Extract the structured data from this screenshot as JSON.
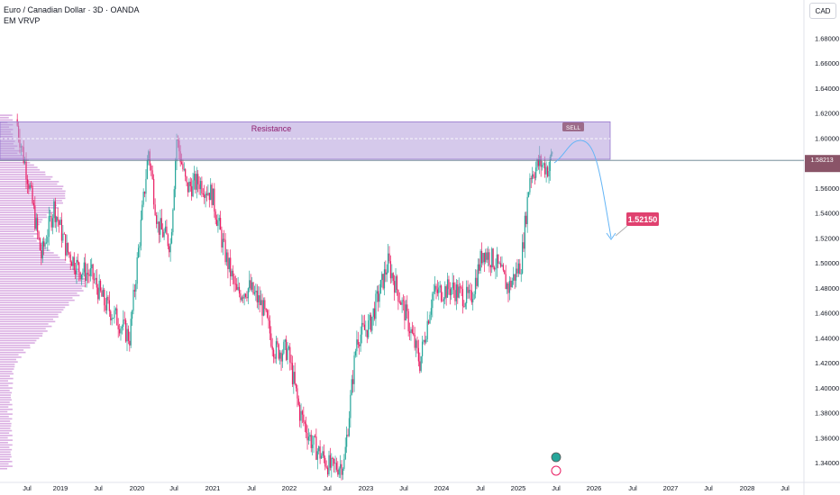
{
  "header": {
    "symbol_title": "Euro / Canadian Dollar · 3D · OANDA",
    "indicator": "EM VRVP",
    "currency_badge": "CAD"
  },
  "colors": {
    "up": "#26a69a",
    "down": "#e91e63",
    "resistance_zone": "#b39ddb",
    "volume_profile": "#ce93d8",
    "price_line": "#607d8b",
    "projection": "#64b5f6",
    "label_bg": "#e0416f"
  },
  "chart_data": {
    "type": "candlestick",
    "title": "",
    "xlabel": "",
    "ylabel": "CAD",
    "x_ticks": [
      "Jul",
      "2019",
      "Jul",
      "2020",
      "Jul",
      "2021",
      "Jul",
      "2022",
      "Jul",
      "2023",
      "Jul",
      "2024",
      "Jul",
      "2025",
      "Jul",
      "2026",
      "Jul",
      "2027",
      "Jul",
      "2028",
      "Jul"
    ],
    "y_ticks": [
      "1.34000",
      "1.36000",
      "1.38000",
      "1.40000",
      "1.42000",
      "1.44000",
      "1.46000",
      "1.48000",
      "1.50000",
      "1.52000",
      "1.54000",
      "1.56000",
      "1.58000",
      "1.60000",
      "1.62000",
      "1.64000",
      "1.66000",
      "1.68000"
    ],
    "ylim": [
      1.33,
      1.705
    ],
    "price_path": [
      [
        "2018-06-01",
        1.615
      ],
      [
        "2018-08-01",
        1.565
      ],
      [
        "2018-10-01",
        1.505
      ],
      [
        "2018-12-01",
        1.545
      ],
      [
        "2019-02-01",
        1.51
      ],
      [
        "2019-04-01",
        1.495
      ],
      [
        "2019-06-01",
        1.49
      ],
      [
        "2019-08-01",
        1.468
      ],
      [
        "2019-10-01",
        1.455
      ],
      [
        "2019-12-01",
        1.44
      ],
      [
        "2020-03-01",
        1.59
      ],
      [
        "2020-04-15",
        1.53
      ],
      [
        "2020-06-15",
        1.515
      ],
      [
        "2020-07-15",
        1.6
      ],
      [
        "2020-09-01",
        1.56
      ],
      [
        "2020-11-01",
        1.565
      ],
      [
        "2021-01-01",
        1.555
      ],
      [
        "2021-03-01",
        1.51
      ],
      [
        "2021-05-01",
        1.475
      ],
      [
        "2021-07-01",
        1.48
      ],
      [
        "2021-09-01",
        1.465
      ],
      [
        "2021-11-01",
        1.43
      ],
      [
        "2022-01-01",
        1.43
      ],
      [
        "2022-03-01",
        1.38
      ],
      [
        "2022-05-01",
        1.355
      ],
      [
        "2022-08-01",
        1.335
      ],
      [
        "2022-10-01",
        1.34
      ],
      [
        "2022-12-01",
        1.44
      ],
      [
        "2023-02-01",
        1.45
      ],
      [
        "2023-05-01",
        1.5
      ],
      [
        "2023-08-01",
        1.455
      ],
      [
        "2023-10-01",
        1.42
      ],
      [
        "2023-12-01",
        1.475
      ],
      [
        "2024-03-01",
        1.48
      ],
      [
        "2024-06-01",
        1.47
      ],
      [
        "2024-08-01",
        1.51
      ],
      [
        "2024-10-01",
        1.5
      ],
      [
        "2024-12-01",
        1.48
      ],
      [
        "2025-02-01",
        1.5
      ],
      [
        "2025-03-15",
        1.57
      ],
      [
        "2025-05-01",
        1.58
      ],
      [
        "2025-06-15",
        1.575
      ],
      [
        "2025-07-01",
        1.59
      ]
    ],
    "resistance_zone": {
      "label": "Resistance",
      "from": 1.583,
      "to": 1.613
    },
    "current_price": 1.5821,
    "current_price_label": "1.58213",
    "sell_label": "SELL",
    "target_value": 1.5215,
    "target_label": "1.52150",
    "grid": false,
    "legend": "none"
  }
}
